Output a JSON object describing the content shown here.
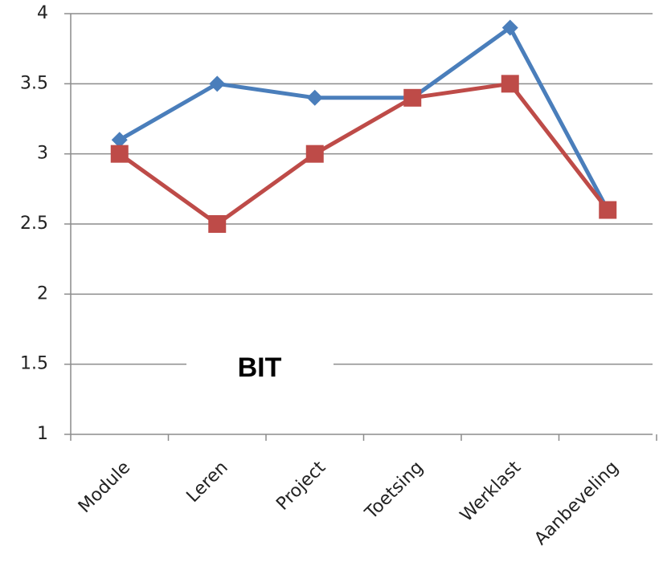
{
  "chart_data": {
    "type": "line",
    "annotation": "BIT",
    "categories": [
      "Module",
      "Leren",
      "Project",
      "Toetsing",
      "Werklast",
      "Aanbeveling"
    ],
    "series": [
      {
        "color": "#4a7ebb",
        "marker": "diamond",
        "values": [
          3.1,
          3.5,
          3.4,
          3.4,
          3.9,
          2.6
        ]
      },
      {
        "color": "#be4b48",
        "marker": "square",
        "values": [
          3.0,
          2.5,
          3.0,
          3.4,
          3.5,
          2.6
        ]
      }
    ],
    "ylim": [
      1,
      4
    ],
    "yticks": [
      1,
      1.5,
      2,
      2.5,
      3,
      3.5,
      4
    ],
    "grid": true
  }
}
